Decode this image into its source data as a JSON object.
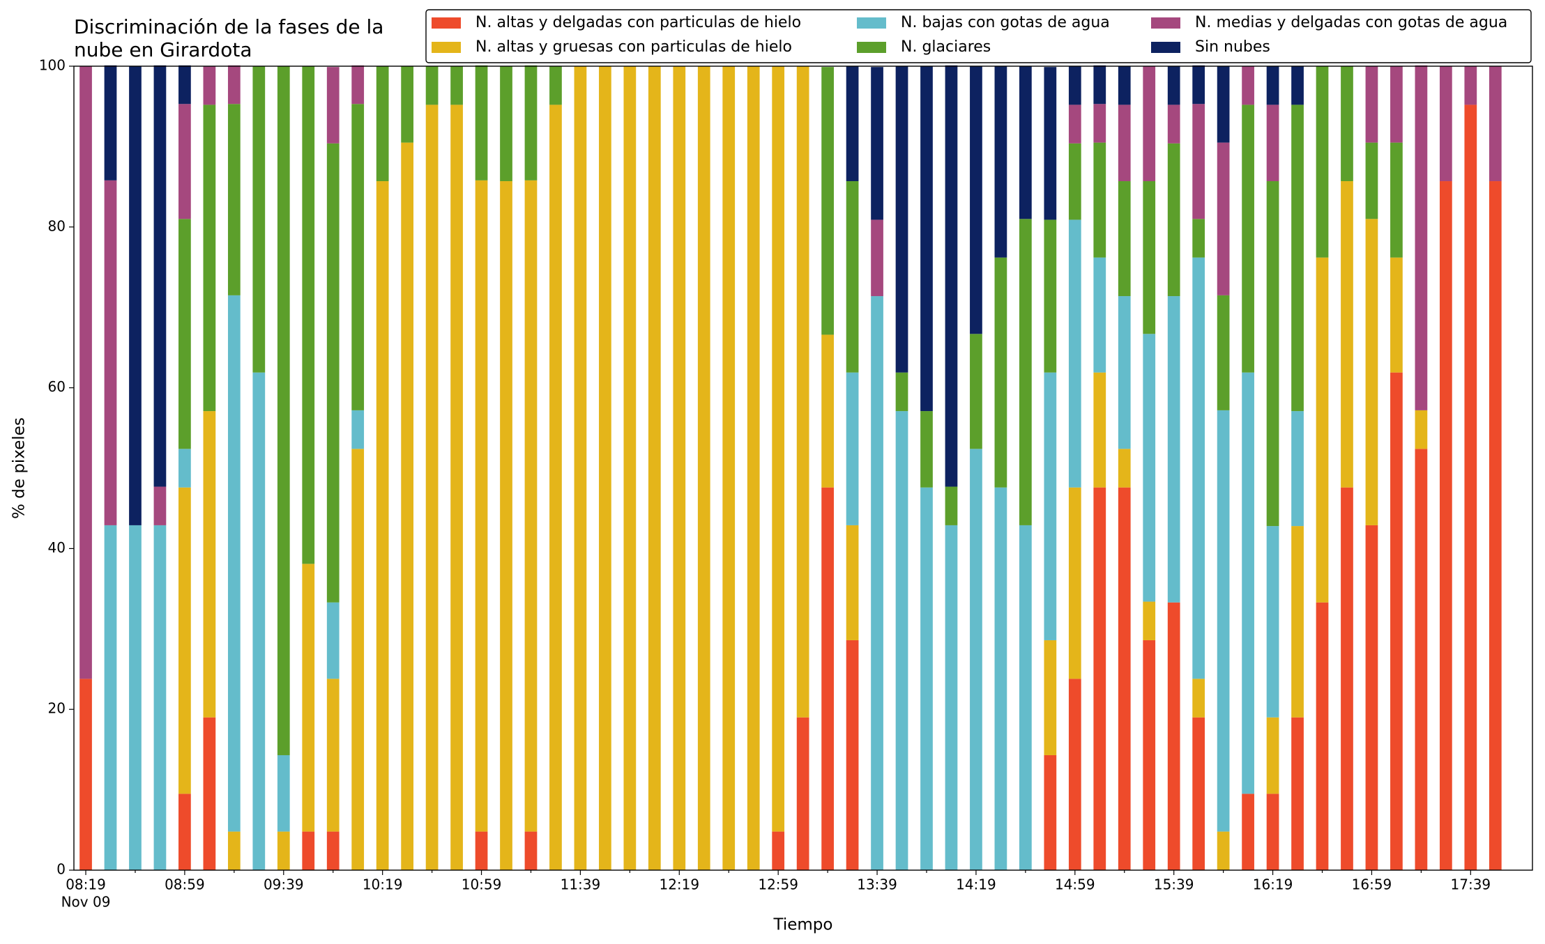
{
  "chart_data": {
    "type": "stacked_bar",
    "title": [
      "Discriminación de la fases de la",
      "nube en Girardota"
    ],
    "xlabel": "Tiempo",
    "ylabel": "% de pixeles",
    "x_date_label": "Nov 09",
    "categories": [
      "08:19",
      null,
      null,
      null,
      "08:59",
      null,
      null,
      null,
      "09:39",
      null,
      null,
      null,
      "10:19",
      null,
      null,
      null,
      "10:59",
      null,
      null,
      null,
      "11:39",
      null,
      null,
      null,
      "12:19",
      null,
      null,
      null,
      "12:59",
      null,
      null,
      null,
      "13:39",
      null,
      null,
      null,
      "14:19",
      null,
      null,
      null,
      "14:59",
      null,
      null,
      null,
      "15:39",
      null,
      null,
      null,
      "16:19",
      null,
      null,
      null,
      "16:59",
      null,
      null,
      null,
      "17:39",
      null
    ],
    "ylim": [
      0,
      100
    ],
    "yticks": [
      0,
      20,
      40,
      60,
      80,
      100
    ],
    "series": [
      {
        "name": "N. altas y delgadas con particulas de hielo",
        "color": "#ee4b2b",
        "values": [
          23.8,
          0,
          0,
          0,
          9.5,
          19,
          0,
          0,
          0,
          4.8,
          4.8,
          0,
          0,
          0,
          0,
          0,
          4.8,
          0,
          4.8,
          0,
          0,
          0,
          0,
          0,
          0,
          0,
          0,
          0,
          4.8,
          19,
          47.6,
          28.6,
          0,
          0,
          0,
          0,
          0,
          0,
          0,
          14.3,
          23.8,
          47.6,
          47.6,
          28.6,
          33.3,
          19,
          0,
          9.5,
          9.5,
          19,
          33.3,
          47.6,
          42.9,
          61.9,
          52.4,
          85.7,
          95.2,
          85.7
        ]
      },
      {
        "name": "N. altas y gruesas con particulas de hielo",
        "color": "#e4b51a",
        "values": [
          0,
          0,
          0,
          0,
          38.1,
          38.1,
          4.8,
          0,
          4.8,
          33.3,
          19,
          52.4,
          85.7,
          90.5,
          95.2,
          95.2,
          81,
          85.7,
          81,
          95.2,
          100,
          100,
          100,
          100,
          100,
          100,
          100,
          100,
          95.2,
          81,
          19,
          14.3,
          0,
          0,
          0,
          0,
          0,
          0,
          0,
          14.3,
          23.8,
          14.3,
          4.8,
          4.8,
          0,
          4.8,
          4.8,
          0,
          9.5,
          23.8,
          42.9,
          38.1,
          38.1,
          14.3,
          4.8,
          0,
          0,
          0
        ]
      },
      {
        "name": "N. bajas con gotas de agua",
        "color": "#64bccb",
        "values": [
          0,
          42.9,
          42.9,
          42.9,
          4.8,
          0,
          66.7,
          61.9,
          9.5,
          0,
          9.5,
          4.8,
          0,
          0,
          0,
          0,
          0,
          0,
          0,
          0,
          0,
          0,
          0,
          0,
          0,
          0,
          0,
          0,
          0,
          0,
          0,
          19,
          71.4,
          57.1,
          47.6,
          42.9,
          52.4,
          47.6,
          42.9,
          33.3,
          33.3,
          14.3,
          19,
          33.3,
          38.1,
          52.4,
          52.4,
          52.4,
          23.8,
          14.3,
          0,
          0,
          0,
          0,
          0,
          0,
          0,
          0
        ]
      },
      {
        "name": "N. glaciares",
        "color": "#5c9f2b",
        "values": [
          0,
          0,
          0,
          0,
          28.6,
          38.1,
          23.8,
          38.1,
          85.7,
          61.9,
          57.1,
          38.1,
          14.3,
          9.5,
          4.8,
          4.8,
          14.3,
          14.3,
          14.3,
          4.8,
          0,
          0,
          0,
          0,
          0,
          0,
          0,
          0,
          0,
          0,
          33.3,
          23.8,
          0,
          4.8,
          9.5,
          4.8,
          14.3,
          28.6,
          38.1,
          19,
          9.5,
          14.3,
          14.3,
          19,
          19,
          4.8,
          14.3,
          33.3,
          42.9,
          38.1,
          23.8,
          14.3,
          9.5,
          14.3,
          0,
          0,
          0,
          0
        ]
      },
      {
        "name": "N. medias y delgadas con gotas de agua",
        "color": "#a5487e",
        "values": [
          76.2,
          42.9,
          0,
          4.8,
          14.3,
          4.8,
          4.8,
          0,
          0,
          0,
          9.5,
          4.8,
          0,
          0,
          0,
          0,
          0,
          0,
          0,
          0,
          0,
          0,
          0,
          0,
          0,
          0,
          0,
          0,
          0,
          0,
          0,
          0,
          9.5,
          0,
          0,
          0,
          0,
          0,
          0,
          0,
          4.8,
          4.8,
          9.5,
          14.3,
          4.8,
          14.3,
          19,
          4.8,
          9.5,
          0,
          0,
          0,
          9.5,
          9.5,
          42.9,
          14.3,
          4.8,
          14.3
        ]
      },
      {
        "name": "Sin nubes",
        "color": "#0d2260",
        "values": [
          0,
          14.3,
          57.1,
          52.4,
          4.8,
          0,
          0,
          0,
          0,
          0,
          0,
          0,
          0,
          0,
          0,
          0,
          0,
          0,
          0,
          0,
          0,
          0,
          0,
          0,
          0,
          0,
          0,
          0,
          0,
          0,
          0,
          14.3,
          19,
          38.1,
          42.9,
          52.4,
          33.3,
          23.8,
          19,
          19,
          4.8,
          4.8,
          4.8,
          0,
          4.8,
          4.8,
          9.5,
          0,
          4.8,
          4.8,
          0,
          0,
          0,
          0,
          0,
          0,
          0,
          0
        ]
      }
    ]
  }
}
